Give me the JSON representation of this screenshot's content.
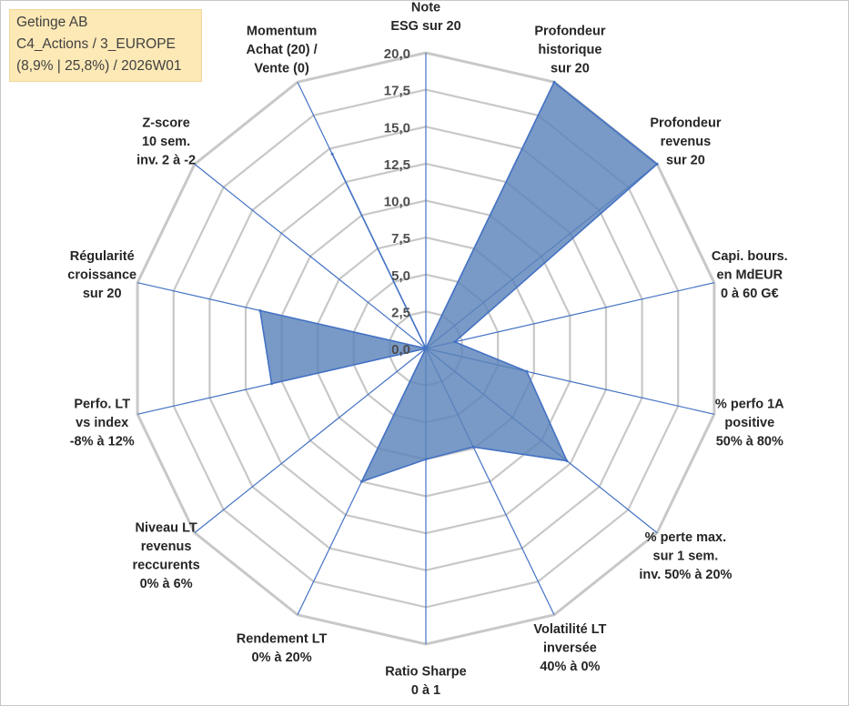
{
  "info": {
    "line1": "Getinge AB",
    "line2": "C4_Actions / 3_EUROPE",
    "line3": "(8,9% | 25,8%) / 2026W01"
  },
  "chart_data": {
    "type": "radar",
    "title": "",
    "rmax": 20,
    "ticks": [
      "0,0",
      "2,5",
      "5,0",
      "7,5",
      "10,0",
      "12,5",
      "15,0",
      "17,5",
      "20,0"
    ],
    "axes": [
      {
        "label": [
          "Note",
          "ESG sur 20"
        ]
      },
      {
        "label": [
          "Profondeur",
          "historique",
          "sur 20"
        ]
      },
      {
        "label": [
          "Profondeur",
          "revenus",
          "sur 20"
        ]
      },
      {
        "label": [
          "Capi. bours.",
          "en MdEUR",
          "0 à 60 G€"
        ]
      },
      {
        "label": [
          "% perfo 1A",
          "positive",
          "50% à 80%"
        ]
      },
      {
        "label": [
          "% perte max.",
          "sur 1 sem.",
          "inv. 50% à 20%"
        ]
      },
      {
        "label": [
          "Volatilité LT",
          "inversée",
          "40% à 0%"
        ]
      },
      {
        "label": [
          "Ratio Sharpe",
          "0 à 1"
        ]
      },
      {
        "label": [
          "Rendement LT",
          "0% à 20%"
        ]
      },
      {
        "label": [
          "Niveau LT",
          "revenus",
          "reccurents",
          "0% à 6%"
        ]
      },
      {
        "label": [
          "Perfo. LT",
          "vs index",
          "-8% à 12%"
        ]
      },
      {
        "label": [
          "Régularité",
          "croissance",
          "sur 20"
        ]
      },
      {
        "label": [
          "Z-score",
          "10 sem.",
          "inv. 2 à -2"
        ]
      },
      {
        "label": [
          "Momentum",
          "Achat (20) /",
          "Vente (0)"
        ]
      }
    ],
    "series": [
      {
        "name": "Getinge AB",
        "color": "#5b84b9",
        "values": [
          0.0,
          20.0,
          20.0,
          2.0,
          7.0,
          12.2,
          7.4,
          7.5,
          10.0,
          0.0,
          10.7,
          11.5,
          0.0,
          14.6
        ]
      }
    ]
  }
}
